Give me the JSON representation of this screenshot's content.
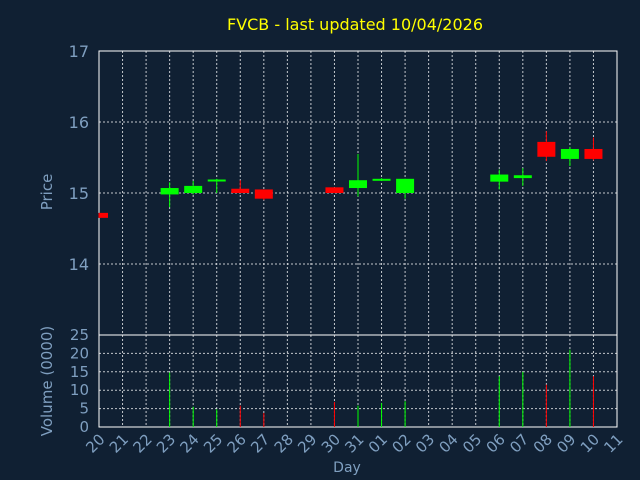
{
  "chart_data": {
    "type": "candlestick",
    "title": "FVCB - last updated 10/04/2026",
    "colors": {
      "background": "#102033",
      "title": "#ffff00",
      "axis_text": "#7f9fc0",
      "grid": "#ffffff",
      "up": "#00ff00",
      "down": "#ff0000"
    },
    "price_panel": {
      "ylabel": "Price",
      "ylim": [
        13.0,
        17.0
      ],
      "yticks": [
        "14",
        "15",
        "16",
        "17"
      ]
    },
    "volume_panel": {
      "ylabel": "Volume (0000)",
      "ylim": [
        0,
        25
      ],
      "yticks": [
        "0",
        "5",
        "10",
        "15",
        "20",
        "25"
      ]
    },
    "xlabel": "Day",
    "xticks": [
      "20",
      "21",
      "22",
      "23",
      "24",
      "25",
      "26",
      "27",
      "28",
      "29",
      "30",
      "31",
      "01",
      "02",
      "03",
      "04",
      "05",
      "06",
      "07",
      "08",
      "09",
      "10",
      "11"
    ],
    "candles": [
      {
        "day": "20",
        "open": 14.72,
        "close": 14.65,
        "high": 14.72,
        "low": 14.65
      },
      {
        "day": "23",
        "open": 14.98,
        "close": 15.07,
        "high": 15.15,
        "low": 14.8
      },
      {
        "day": "24",
        "open": 15.0,
        "close": 15.1,
        "high": 15.17,
        "low": 14.98
      },
      {
        "day": "25",
        "open": 15.17,
        "close": 15.19,
        "high": 15.2,
        "low": 15.0
      },
      {
        "day": "26",
        "open": 15.06,
        "close": 15.0,
        "high": 15.18,
        "low": 15.0
      },
      {
        "day": "27",
        "open": 15.05,
        "close": 14.92,
        "high": 15.05,
        "low": 14.9
      },
      {
        "day": "30",
        "open": 15.08,
        "close": 15.0,
        "high": 15.08,
        "low": 15.0
      },
      {
        "day": "31",
        "open": 15.07,
        "close": 15.18,
        "high": 15.55,
        "low": 14.95
      },
      {
        "day": "01",
        "open": 15.18,
        "close": 15.2,
        "high": 15.21,
        "low": 15.17
      },
      {
        "day": "02",
        "open": 15.0,
        "close": 15.2,
        "high": 15.2,
        "low": 14.92
      },
      {
        "day": "06",
        "open": 15.16,
        "close": 15.26,
        "high": 15.33,
        "low": 15.05
      },
      {
        "day": "07",
        "open": 15.21,
        "close": 15.25,
        "high": 15.35,
        "low": 15.1
      },
      {
        "day": "08",
        "open": 15.72,
        "close": 15.51,
        "high": 15.87,
        "low": 15.45
      },
      {
        "day": "09",
        "open": 15.48,
        "close": 15.62,
        "high": 15.65,
        "low": 15.38
      },
      {
        "day": "10",
        "open": 15.62,
        "close": 15.48,
        "high": 15.78,
        "low": 15.46
      }
    ],
    "volumes": [
      {
        "day": "23",
        "value": 14.8,
        "dir": "up"
      },
      {
        "day": "24",
        "value": 5.5,
        "dir": "up"
      },
      {
        "day": "25",
        "value": 4.8,
        "dir": "up"
      },
      {
        "day": "26",
        "value": 5.8,
        "dir": "down"
      },
      {
        "day": "27",
        "value": 3.8,
        "dir": "down"
      },
      {
        "day": "30",
        "value": 6.8,
        "dir": "down"
      },
      {
        "day": "31",
        "value": 5.8,
        "dir": "up"
      },
      {
        "day": "01",
        "value": 6.5,
        "dir": "up"
      },
      {
        "day": "02",
        "value": 7.0,
        "dir": "up"
      },
      {
        "day": "06",
        "value": 13.8,
        "dir": "up"
      },
      {
        "day": "07",
        "value": 15.0,
        "dir": "up"
      },
      {
        "day": "08",
        "value": 11.5,
        "dir": "down"
      },
      {
        "day": "09",
        "value": 21.0,
        "dir": "up"
      },
      {
        "day": "10",
        "value": 13.8,
        "dir": "down"
      }
    ]
  }
}
